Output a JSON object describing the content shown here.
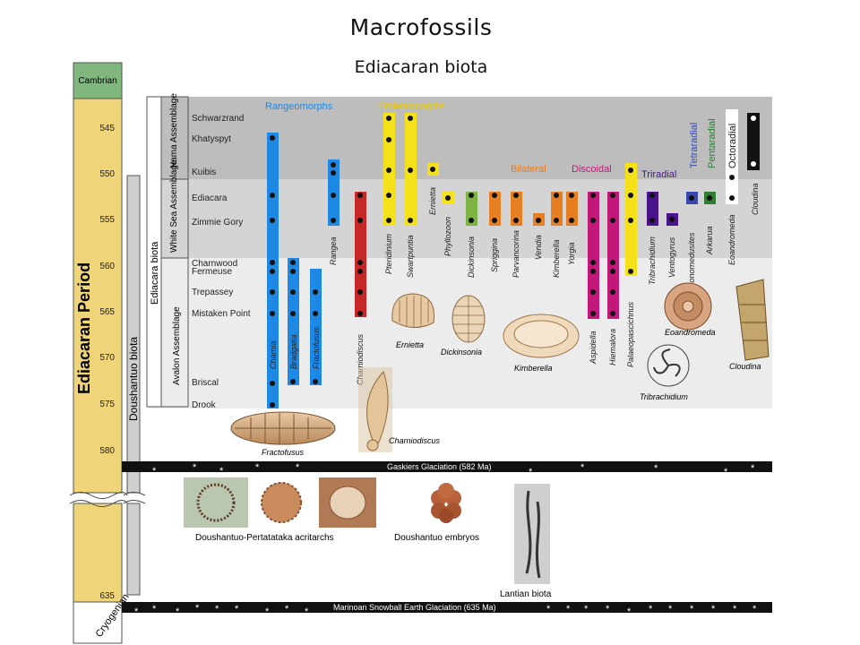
{
  "title": "Macrofossils",
  "subtitle": "Ediacaran biota",
  "timescale": {
    "period_label": "Ediacaran Period",
    "top_label": "Cambrian",
    "bottom_label": "Cryogenian",
    "ticks": [
      "545",
      "550",
      "555",
      "560",
      "565",
      "570",
      "575",
      "580",
      "635"
    ],
    "doushantuo_label": "Doushantuo biota",
    "ediacara_label": "Ediacara biota"
  },
  "assemblages": [
    "Nama Assemblage",
    "White Sea Assemblage",
    "Avalon Assemblage"
  ],
  "localities": [
    "Schwarzrand",
    "Khatyspyt",
    "Kuibis",
    "Ediacara",
    "Zimmie Gory",
    "Charnwood",
    "Fermeuse",
    "Trepassey",
    "Mistaken Point",
    "Briscal",
    "Drook"
  ],
  "groups": [
    "Rangeomorphs",
    "Erniettomorphs",
    "Bilateral",
    "Discoidal",
    "Triradial",
    "Tetraradial",
    "Pentaradial",
    "Octoradial"
  ],
  "taxa": [
    "Charnia",
    "Bradgatia",
    "Fractofusus",
    "Rangea",
    "Charniodiscus",
    "Pteridinium",
    "Swartpuntia",
    "Ernietta",
    "Phyllozoon",
    "Dickinsonia",
    "Spriggina",
    "Parvancorina",
    "Vendia",
    "Kimberella",
    "Yorgia",
    "Aspidella",
    "Hiemalora",
    "Palaeopascichnus",
    "Tribrachidium",
    "Ventogyrus",
    "Conomedusites",
    "Arkarua",
    "Eoandromeda",
    "Cloudina"
  ],
  "illustrations": [
    "Fractofusus",
    "Charniodiscus",
    "Ernietta",
    "Dickinsonia",
    "Kimberella",
    "Eoandromeda",
    "Tribrachidium",
    "Cloudina"
  ],
  "glaciations": {
    "gaskiers": "Gaskiers Glaciation (582 Ma)",
    "marinoan": "Marinoan Snowball Earth Glaciation (635 Ma)"
  },
  "lower_labels": {
    "acritarchs": "Doushantuo-Pertatataka acritarchs",
    "embryos": "Doushantuo embryos",
    "lantian": "Lantian biota"
  },
  "colors": {
    "rangeomorph": "#1e88e5",
    "charniodiscus": "#c62828",
    "erniettomorph": "#f5e11a",
    "bilateral": "#e67e22",
    "discoidal": "#c2187a",
    "triradial": "#4a148c",
    "tetraradial": "#3949ab",
    "pentaradial": "#2e7d32",
    "octoradial": "#111111",
    "period": "#f0d47a",
    "cambrian": "#7fb77e"
  }
}
